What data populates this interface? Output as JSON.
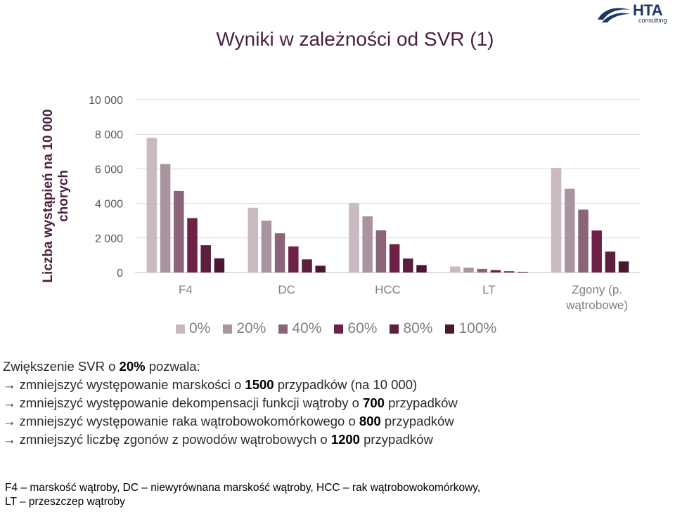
{
  "logo": {
    "name": "HTA",
    "sub": "consulting"
  },
  "title": "Wyniki w zależności od SVR (1)",
  "chart_data": {
    "type": "bar",
    "ylabel": "Liczba wystąpień na 10 000 chorych",
    "ylim": [
      0,
      10000
    ],
    "yticks": [
      "0",
      "2 000",
      "4 000",
      "6 000",
      "8 000",
      "10 000"
    ],
    "ytick_values": [
      0,
      2000,
      4000,
      6000,
      8000,
      10000
    ],
    "categories": [
      "F4",
      "DC",
      "HCC",
      "LT",
      "Zgony (p. wątrobowe)"
    ],
    "category_lines": [
      [
        "F4"
      ],
      [
        "DC"
      ],
      [
        "HCC"
      ],
      [
        "LT"
      ],
      [
        "Zgony (p.",
        "wątrobowe)"
      ]
    ],
    "legend_position": "bottom",
    "series": [
      {
        "name": "0%",
        "color": "#c9b9c1",
        "values": [
          7800,
          3750,
          4030,
          350,
          6050
        ]
      },
      {
        "name": "20%",
        "color": "#a9959f",
        "values": [
          6280,
          3000,
          3250,
          280,
          4850
        ]
      },
      {
        "name": "40%",
        "color": "#8a6479",
        "values": [
          4720,
          2270,
          2440,
          210,
          3640
        ]
      },
      {
        "name": "60%",
        "color": "#6e2147",
        "values": [
          3150,
          1510,
          1640,
          140,
          2430
        ]
      },
      {
        "name": "80%",
        "color": "#5c1f3d",
        "values": [
          1580,
          760,
          810,
          70,
          1210
        ]
      },
      {
        "name": "100%",
        "color": "#4a1733",
        "values": [
          820,
          390,
          430,
          40,
          640
        ]
      }
    ]
  },
  "notes": {
    "intro_a": "Zwiększenie SVR o ",
    "intro_b": "20%",
    "intro_c": " pozwala:",
    "items": [
      {
        "pre": "zmniejszyć występowanie marskości o ",
        "bold": "1500",
        "post": " przypadków (na 10 000)"
      },
      {
        "pre": "zmniejszyć występowanie dekompensacji funkcji wątroby o ",
        "bold": "700",
        "post": " przypadków"
      },
      {
        "pre": "zmniejszyć występowanie raka wątrobowokomórkowego o ",
        "bold": "800",
        "post": " przypadków"
      },
      {
        "pre": "zmniejszyć liczbę zgonów z powodów wątrobowych o ",
        "bold": "1200",
        "post": " przypadków"
      }
    ],
    "arrow": "→"
  },
  "footer": {
    "line1": "F4 – marskość wątroby, DC – niewyrównana marskość wątroby, HCC – rak wątrobowokomórkowy,",
    "line2": "LT – przeszczep wątroby"
  }
}
